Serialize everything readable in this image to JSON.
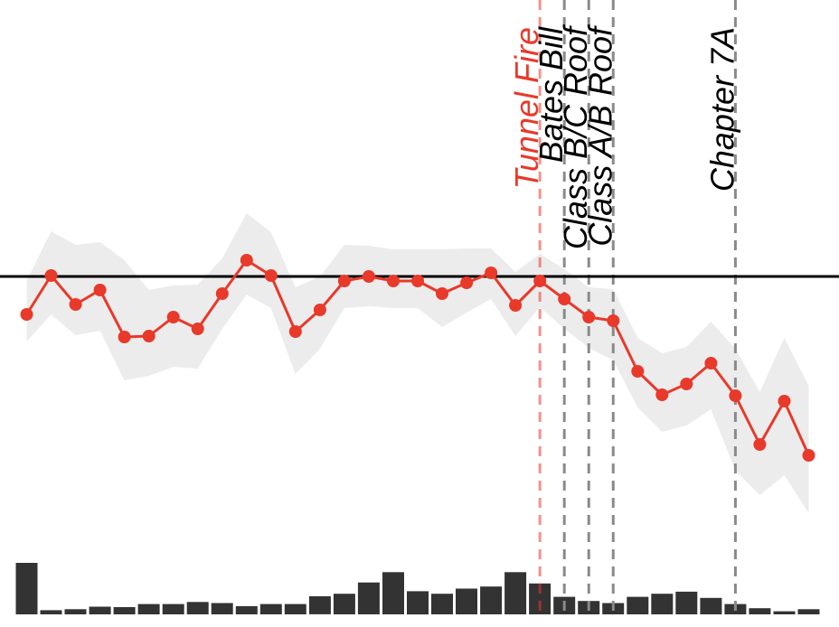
{
  "chart_data": {
    "type": "line",
    "title": "",
    "xlabel": "",
    "ylabel": "",
    "grid": false,
    "legend": "none",
    "x": [
      1,
      2,
      3,
      4,
      5,
      6,
      7,
      8,
      9,
      10,
      11,
      12,
      13,
      14,
      15,
      16,
      17,
      18,
      19,
      20,
      21,
      22,
      23,
      24,
      25,
      26,
      27,
      28,
      29,
      30,
      31,
      32,
      33
    ],
    "series": [
      {
        "values": [
          -0.42,
          0.01,
          -0.31,
          -0.15,
          -0.67,
          -0.66,
          -0.45,
          -0.58,
          -0.19,
          0.18,
          0.01,
          -0.61,
          -0.37,
          -0.05,
          0.0,
          -0.05,
          -0.05,
          -0.19,
          -0.07,
          0.04,
          -0.32,
          -0.05,
          -0.25,
          -0.45,
          -0.49,
          -1.05,
          -1.31,
          -1.19,
          -0.96,
          -1.32,
          -1.86,
          -1.38,
          -1.98
        ],
        "lower": [
          -0.72,
          -0.42,
          -0.65,
          -0.6,
          -1.15,
          -1.1,
          -1.0,
          -1.02,
          -0.58,
          -0.2,
          -0.35,
          -1.08,
          -0.8,
          -0.35,
          -0.33,
          -0.35,
          -0.35,
          -0.56,
          -0.4,
          -0.25,
          -0.66,
          -0.34,
          -0.58,
          -0.79,
          -0.93,
          -1.45,
          -1.72,
          -1.65,
          -1.47,
          -2.15,
          -2.42,
          -2.2,
          -2.62
        ],
        "upper": [
          -0.05,
          0.5,
          0.35,
          0.38,
          0.18,
          -0.15,
          -0.1,
          -0.09,
          0.2,
          0.7,
          0.49,
          -0.12,
          0.0,
          0.35,
          0.34,
          0.3,
          0.3,
          0.3,
          0.31,
          0.31,
          0.05,
          0.25,
          0.08,
          -0.12,
          -0.14,
          -0.68,
          -0.85,
          -0.78,
          -0.5,
          -0.8,
          -1.28,
          -0.68,
          -1.21
        ],
        "color": "#e8392b",
        "band_color": "#ececec"
      }
    ],
    "reference_line": {
      "y": 0,
      "color": "#000000"
    },
    "events": [
      {
        "label": "Tunnel Fire",
        "x": 22,
        "color": "#e8392b"
      },
      {
        "label": "Bates Bill",
        "x": 23,
        "color": "#000000"
      },
      {
        "label": "Class B/C Roof",
        "x": 24,
        "color": "#000000"
      },
      {
        "label": "Class A/B Roof",
        "x": 25,
        "color": "#000000"
      },
      {
        "label": "Chapter 7A",
        "x": 30,
        "color": "#000000"
      }
    ],
    "bars": {
      "values": [
        1.0,
        0.08,
        0.1,
        0.15,
        0.14,
        0.2,
        0.2,
        0.24,
        0.22,
        0.16,
        0.2,
        0.2,
        0.35,
        0.4,
        0.62,
        0.82,
        0.45,
        0.4,
        0.5,
        0.54,
        0.82,
        0.6,
        0.34,
        0.26,
        0.22,
        0.34,
        0.4,
        0.44,
        0.32,
        0.2,
        0.12,
        0.06,
        0.1
      ],
      "color": "#333333"
    },
    "ylim": [
      -3.0,
      1.15
    ]
  }
}
